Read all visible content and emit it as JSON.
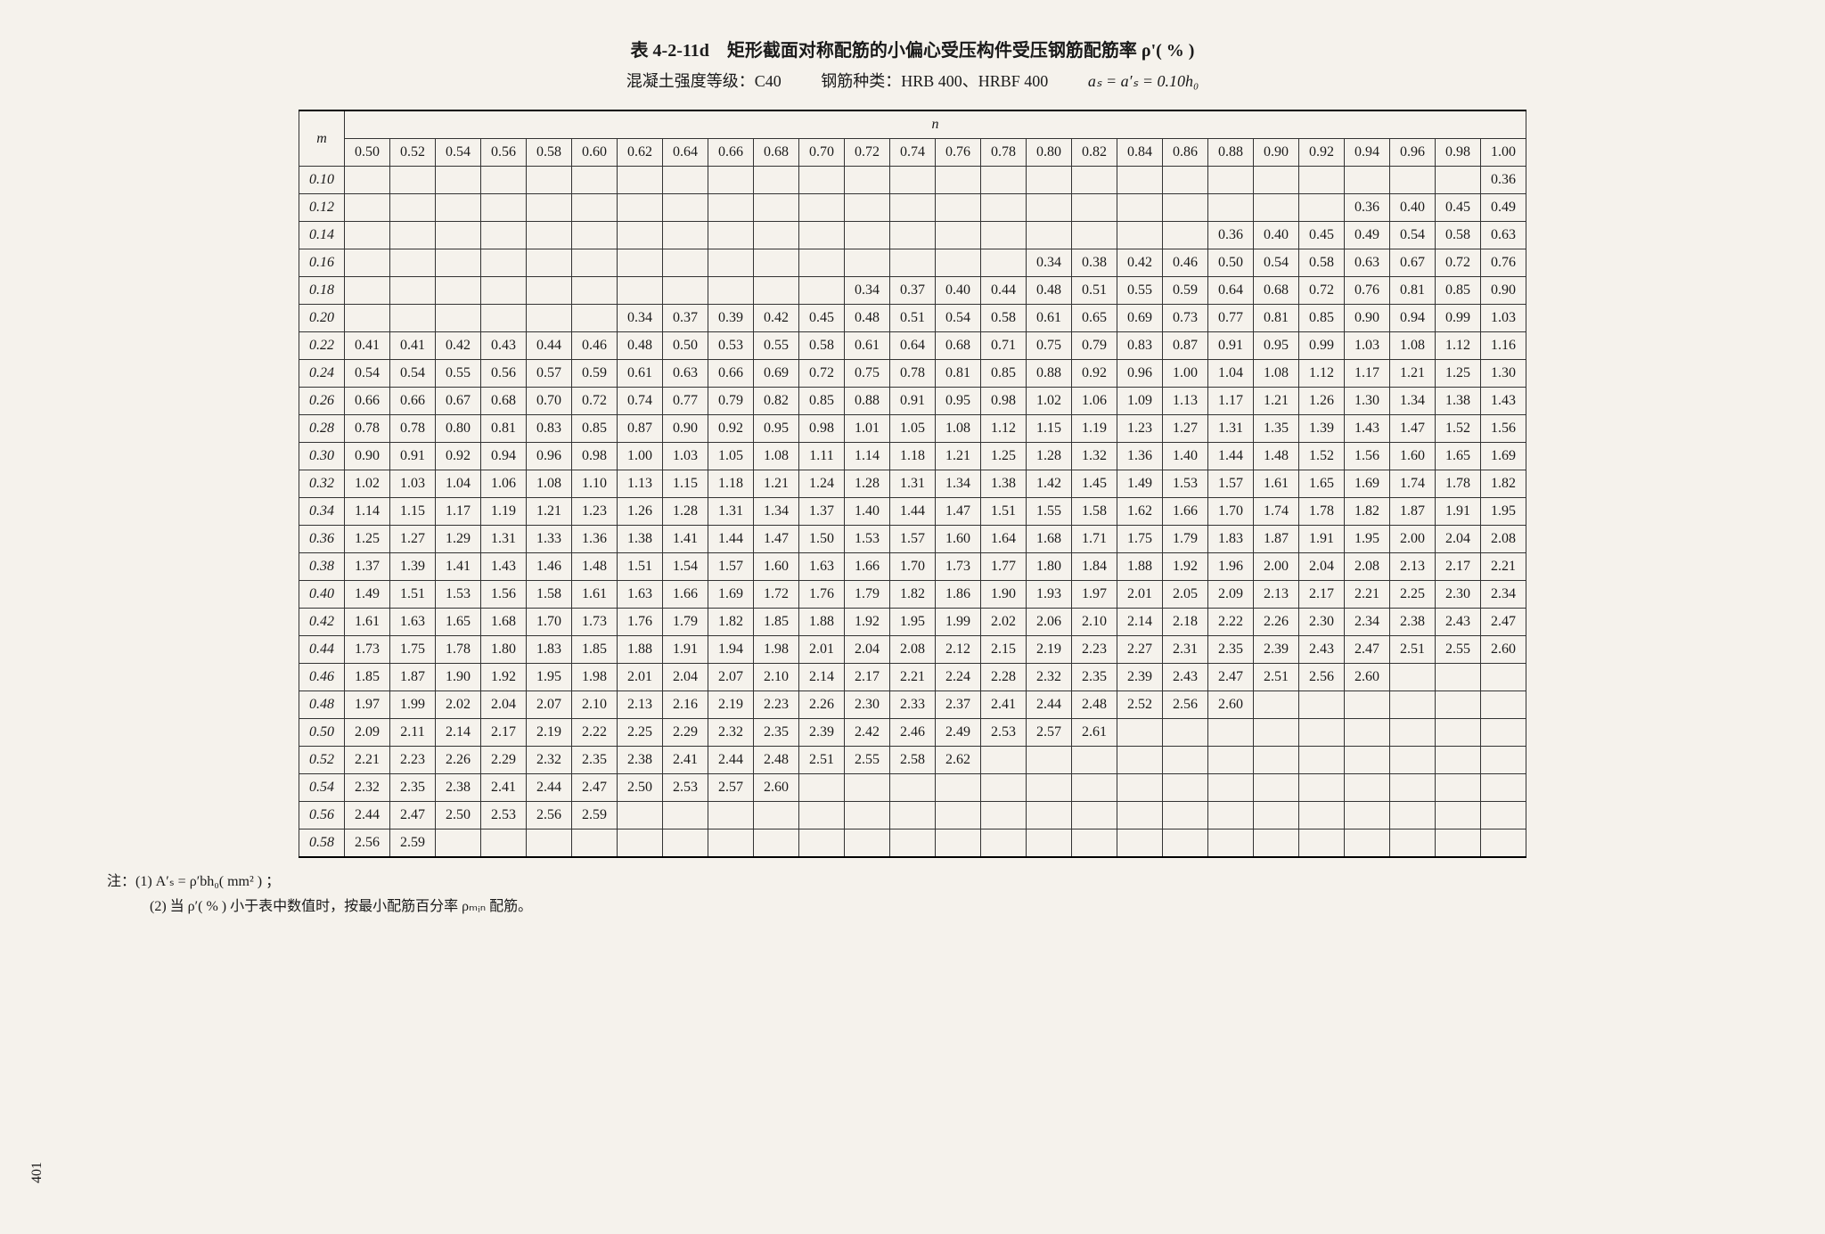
{
  "title": "表 4-2-11d　矩形截面对称配筋的小偏心受压构件受压钢筋配筋率 ρ'( % )",
  "subtitle": {
    "concrete": "混凝土强度等级：C40",
    "rebar": "钢筋种类：HRB 400、HRBF 400",
    "formula": "aₛ = a′ₛ = 0.10h₀"
  },
  "page_number": "401",
  "m_label": "m",
  "n_label": "n",
  "n_headers": [
    "0.50",
    "0.52",
    "0.54",
    "0.56",
    "0.58",
    "0.60",
    "0.62",
    "0.64",
    "0.66",
    "0.68",
    "0.70",
    "0.72",
    "0.74",
    "0.76",
    "0.78",
    "0.80",
    "0.82",
    "0.84",
    "0.86",
    "0.88",
    "0.90",
    "0.92",
    "0.94",
    "0.96",
    "0.98",
    "1.00"
  ],
  "rows": [
    {
      "m": "0.10",
      "v": [
        "",
        "",
        "",
        "",
        "",
        "",
        "",
        "",
        "",
        "",
        "",
        "",
        "",
        "",
        "",
        "",
        "",
        "",
        "",
        "",
        "",
        "",
        "",
        "",
        "",
        "0.36"
      ]
    },
    {
      "m": "0.12",
      "v": [
        "",
        "",
        "",
        "",
        "",
        "",
        "",
        "",
        "",
        "",
        "",
        "",
        "",
        "",
        "",
        "",
        "",
        "",
        "",
        "",
        "",
        "",
        "0.36",
        "0.40",
        "0.45",
        "0.49"
      ]
    },
    {
      "m": "0.14",
      "v": [
        "",
        "",
        "",
        "",
        "",
        "",
        "",
        "",
        "",
        "",
        "",
        "",
        "",
        "",
        "",
        "",
        "",
        "",
        "",
        "0.36",
        "0.40",
        "0.45",
        "0.49",
        "0.54",
        "0.58",
        "0.63"
      ]
    },
    {
      "m": "0.16",
      "v": [
        "",
        "",
        "",
        "",
        "",
        "",
        "",
        "",
        "",
        "",
        "",
        "",
        "",
        "",
        "",
        "0.34",
        "0.38",
        "0.42",
        "0.46",
        "0.50",
        "0.54",
        "0.58",
        "0.63",
        "0.67",
        "0.72",
        "0.76"
      ]
    },
    {
      "m": "0.18",
      "v": [
        "",
        "",
        "",
        "",
        "",
        "",
        "",
        "",
        "",
        "",
        "",
        "0.34",
        "0.37",
        "0.40",
        "0.44",
        "0.48",
        "0.51",
        "0.55",
        "0.59",
        "0.64",
        "0.68",
        "0.72",
        "0.76",
        "0.81",
        "0.85",
        "0.90"
      ]
    },
    {
      "m": "0.20",
      "v": [
        "",
        "",
        "",
        "",
        "",
        "",
        "0.34",
        "0.37",
        "0.39",
        "0.42",
        "0.45",
        "0.48",
        "0.51",
        "0.54",
        "0.58",
        "0.61",
        "0.65",
        "0.69",
        "0.73",
        "0.77",
        "0.81",
        "0.85",
        "0.90",
        "0.94",
        "0.99",
        "1.03"
      ]
    },
    {
      "m": "0.22",
      "v": [
        "0.41",
        "0.41",
        "0.42",
        "0.43",
        "0.44",
        "0.46",
        "0.48",
        "0.50",
        "0.53",
        "0.55",
        "0.58",
        "0.61",
        "0.64",
        "0.68",
        "0.71",
        "0.75",
        "0.79",
        "0.83",
        "0.87",
        "0.91",
        "0.95",
        "0.99",
        "1.03",
        "1.08",
        "1.12",
        "1.16"
      ]
    },
    {
      "m": "0.24",
      "v": [
        "0.54",
        "0.54",
        "0.55",
        "0.56",
        "0.57",
        "0.59",
        "0.61",
        "0.63",
        "0.66",
        "0.69",
        "0.72",
        "0.75",
        "0.78",
        "0.81",
        "0.85",
        "0.88",
        "0.92",
        "0.96",
        "1.00",
        "1.04",
        "1.08",
        "1.12",
        "1.17",
        "1.21",
        "1.25",
        "1.30"
      ]
    },
    {
      "m": "0.26",
      "v": [
        "0.66",
        "0.66",
        "0.67",
        "0.68",
        "0.70",
        "0.72",
        "0.74",
        "0.77",
        "0.79",
        "0.82",
        "0.85",
        "0.88",
        "0.91",
        "0.95",
        "0.98",
        "1.02",
        "1.06",
        "1.09",
        "1.13",
        "1.17",
        "1.21",
        "1.26",
        "1.30",
        "1.34",
        "1.38",
        "1.43"
      ]
    },
    {
      "m": "0.28",
      "v": [
        "0.78",
        "0.78",
        "0.80",
        "0.81",
        "0.83",
        "0.85",
        "0.87",
        "0.90",
        "0.92",
        "0.95",
        "0.98",
        "1.01",
        "1.05",
        "1.08",
        "1.12",
        "1.15",
        "1.19",
        "1.23",
        "1.27",
        "1.31",
        "1.35",
        "1.39",
        "1.43",
        "1.47",
        "1.52",
        "1.56"
      ]
    },
    {
      "m": "0.30",
      "v": [
        "0.90",
        "0.91",
        "0.92",
        "0.94",
        "0.96",
        "0.98",
        "1.00",
        "1.03",
        "1.05",
        "1.08",
        "1.11",
        "1.14",
        "1.18",
        "1.21",
        "1.25",
        "1.28",
        "1.32",
        "1.36",
        "1.40",
        "1.44",
        "1.48",
        "1.52",
        "1.56",
        "1.60",
        "1.65",
        "1.69"
      ]
    },
    {
      "m": "0.32",
      "v": [
        "1.02",
        "1.03",
        "1.04",
        "1.06",
        "1.08",
        "1.10",
        "1.13",
        "1.15",
        "1.18",
        "1.21",
        "1.24",
        "1.28",
        "1.31",
        "1.34",
        "1.38",
        "1.42",
        "1.45",
        "1.49",
        "1.53",
        "1.57",
        "1.61",
        "1.65",
        "1.69",
        "1.74",
        "1.78",
        "1.82"
      ]
    },
    {
      "m": "0.34",
      "v": [
        "1.14",
        "1.15",
        "1.17",
        "1.19",
        "1.21",
        "1.23",
        "1.26",
        "1.28",
        "1.31",
        "1.34",
        "1.37",
        "1.40",
        "1.44",
        "1.47",
        "1.51",
        "1.55",
        "1.58",
        "1.62",
        "1.66",
        "1.70",
        "1.74",
        "1.78",
        "1.82",
        "1.87",
        "1.91",
        "1.95"
      ]
    },
    {
      "m": "0.36",
      "v": [
        "1.25",
        "1.27",
        "1.29",
        "1.31",
        "1.33",
        "1.36",
        "1.38",
        "1.41",
        "1.44",
        "1.47",
        "1.50",
        "1.53",
        "1.57",
        "1.60",
        "1.64",
        "1.68",
        "1.71",
        "1.75",
        "1.79",
        "1.83",
        "1.87",
        "1.91",
        "1.95",
        "2.00",
        "2.04",
        "2.08"
      ]
    },
    {
      "m": "0.38",
      "v": [
        "1.37",
        "1.39",
        "1.41",
        "1.43",
        "1.46",
        "1.48",
        "1.51",
        "1.54",
        "1.57",
        "1.60",
        "1.63",
        "1.66",
        "1.70",
        "1.73",
        "1.77",
        "1.80",
        "1.84",
        "1.88",
        "1.92",
        "1.96",
        "2.00",
        "2.04",
        "2.08",
        "2.13",
        "2.17",
        "2.21"
      ]
    },
    {
      "m": "0.40",
      "v": [
        "1.49",
        "1.51",
        "1.53",
        "1.56",
        "1.58",
        "1.61",
        "1.63",
        "1.66",
        "1.69",
        "1.72",
        "1.76",
        "1.79",
        "1.82",
        "1.86",
        "1.90",
        "1.93",
        "1.97",
        "2.01",
        "2.05",
        "2.09",
        "2.13",
        "2.17",
        "2.21",
        "2.25",
        "2.30",
        "2.34"
      ]
    },
    {
      "m": "0.42",
      "v": [
        "1.61",
        "1.63",
        "1.65",
        "1.68",
        "1.70",
        "1.73",
        "1.76",
        "1.79",
        "1.82",
        "1.85",
        "1.88",
        "1.92",
        "1.95",
        "1.99",
        "2.02",
        "2.06",
        "2.10",
        "2.14",
        "2.18",
        "2.22",
        "2.26",
        "2.30",
        "2.34",
        "2.38",
        "2.43",
        "2.47"
      ]
    },
    {
      "m": "0.44",
      "v": [
        "1.73",
        "1.75",
        "1.78",
        "1.80",
        "1.83",
        "1.85",
        "1.88",
        "1.91",
        "1.94",
        "1.98",
        "2.01",
        "2.04",
        "2.08",
        "2.12",
        "2.15",
        "2.19",
        "2.23",
        "2.27",
        "2.31",
        "2.35",
        "2.39",
        "2.43",
        "2.47",
        "2.51",
        "2.55",
        "2.60"
      ]
    },
    {
      "m": "0.46",
      "v": [
        "1.85",
        "1.87",
        "1.90",
        "1.92",
        "1.95",
        "1.98",
        "2.01",
        "2.04",
        "2.07",
        "2.10",
        "2.14",
        "2.17",
        "2.21",
        "2.24",
        "2.28",
        "2.32",
        "2.35",
        "2.39",
        "2.43",
        "2.47",
        "2.51",
        "2.56",
        "2.60",
        "",
        "",
        ""
      ]
    },
    {
      "m": "0.48",
      "v": [
        "1.97",
        "1.99",
        "2.02",
        "2.04",
        "2.07",
        "2.10",
        "2.13",
        "2.16",
        "2.19",
        "2.23",
        "2.26",
        "2.30",
        "2.33",
        "2.37",
        "2.41",
        "2.44",
        "2.48",
        "2.52",
        "2.56",
        "2.60",
        "",
        "",
        "",
        "",
        "",
        ""
      ]
    },
    {
      "m": "0.50",
      "v": [
        "2.09",
        "2.11",
        "2.14",
        "2.17",
        "2.19",
        "2.22",
        "2.25",
        "2.29",
        "2.32",
        "2.35",
        "2.39",
        "2.42",
        "2.46",
        "2.49",
        "2.53",
        "2.57",
        "2.61",
        "",
        "",
        "",
        "",
        "",
        "",
        "",
        "",
        ""
      ]
    },
    {
      "m": "0.52",
      "v": [
        "2.21",
        "2.23",
        "2.26",
        "2.29",
        "2.32",
        "2.35",
        "2.38",
        "2.41",
        "2.44",
        "2.48",
        "2.51",
        "2.55",
        "2.58",
        "2.62",
        "",
        "",
        "",
        "",
        "",
        "",
        "",
        "",
        "",
        "",
        "",
        ""
      ]
    },
    {
      "m": "0.54",
      "v": [
        "2.32",
        "2.35",
        "2.38",
        "2.41",
        "2.44",
        "2.47",
        "2.50",
        "2.53",
        "2.57",
        "2.60",
        "",
        "",
        "",
        "",
        "",
        "",
        "",
        "",
        "",
        "",
        "",
        "",
        "",
        "",
        "",
        ""
      ]
    },
    {
      "m": "0.56",
      "v": [
        "2.44",
        "2.47",
        "2.50",
        "2.53",
        "2.56",
        "2.59",
        "",
        "",
        "",
        "",
        "",
        "",
        "",
        "",
        "",
        "",
        "",
        "",
        "",
        "",
        "",
        "",
        "",
        "",
        "",
        ""
      ]
    },
    {
      "m": "0.58",
      "v": [
        "2.56",
        "2.59",
        "",
        "",
        "",
        "",
        "",
        "",
        "",
        "",
        "",
        "",
        "",
        "",
        "",
        "",
        "",
        "",
        "",
        "",
        "",
        "",
        "",
        "",
        "",
        ""
      ]
    }
  ],
  "notes": {
    "n1": "注：(1) A′ₛ = ρ′bh₀( mm² ) ；",
    "n2": "(2) 当 ρ′( % ) 小于表中数值时，按最小配筋百分率 ρₘᵢₙ 配筋。"
  }
}
